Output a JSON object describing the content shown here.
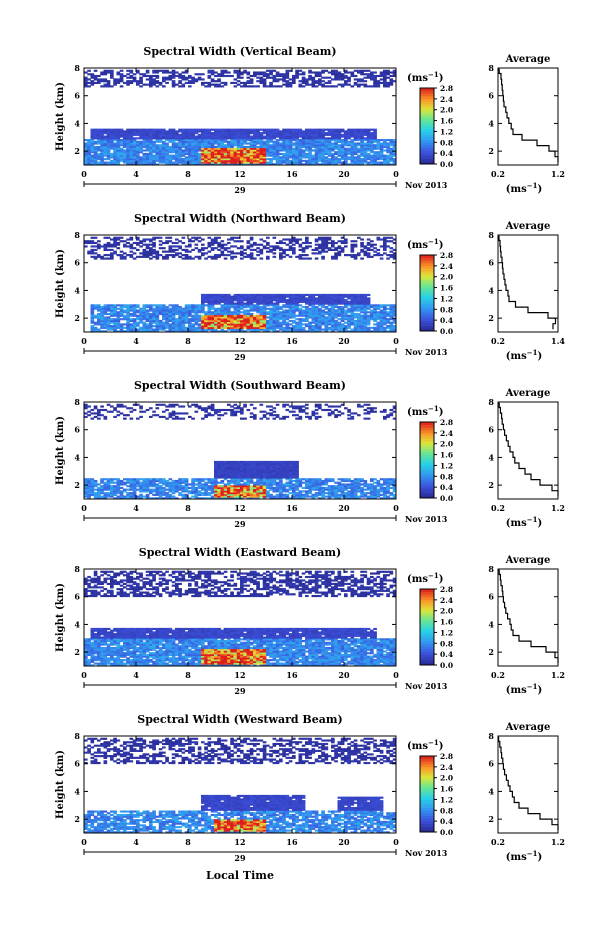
{
  "figure": {
    "xlabel_bottom": "Local Time",
    "colorbar_unit_base": "(ms",
    "colorbar_unit_exp": "−1",
    "colorbar_unit_close": ")"
  },
  "chart_data": [
    {
      "type": "heatmap",
      "title": "Spectral Width (Vertical Beam)",
      "ylabel": "Height (km)",
      "xticks": [
        "0",
        "4",
        "8",
        "12",
        "16",
        "20",
        "0"
      ],
      "xlim": [
        0,
        24
      ],
      "ylim": [
        1,
        8
      ],
      "yticks": [
        "2",
        "4",
        "6",
        "8"
      ],
      "date_day": "29",
      "date_month_year": "Nov 2013",
      "colorbar": {
        "min": 0.0,
        "max": 2.8,
        "ticks": [
          "2.8",
          "2.4",
          "2.0",
          "1.6",
          "1.2",
          "0.8",
          "0.4",
          "0.0"
        ]
      },
      "clouds": [
        {
          "x0": 0.0,
          "x1": 24.0,
          "y0": 6.6,
          "y1": 7.9,
          "density": 0.55,
          "level": 0.05
        },
        {
          "x0": 0.5,
          "x1": 22.5,
          "y0": 2.9,
          "y1": 3.6,
          "density": 0.95,
          "level": 0.25
        },
        {
          "x0": 0.0,
          "x1": 24.0,
          "y0": 1.0,
          "y1": 2.9,
          "density": 0.9,
          "level": 0.7
        },
        {
          "x0": 9.0,
          "x1": 14.0,
          "y0": 1.1,
          "y1": 2.2,
          "density": 1.0,
          "level": 2.4
        }
      ],
      "average_profile": {
        "title": "Average",
        "xticks": [
          "0.2",
          "1.2"
        ],
        "xlim": [
          0.2,
          1.2
        ],
        "yticks": [
          "2",
          "4",
          "6",
          "8"
        ],
        "ylim": [
          1,
          8
        ],
        "xlabel": "(ms",
        "height": [
          1.2,
          1.6,
          2.0,
          2.4,
          2.8,
          3.2,
          3.6,
          4.0,
          4.4,
          4.8,
          5.2,
          5.6,
          6.0,
          6.4,
          6.8,
          7.2,
          7.6,
          7.9
        ],
        "width": [
          1.2,
          1.15,
          1.05,
          0.85,
          0.6,
          0.45,
          0.42,
          0.38,
          0.35,
          0.33,
          0.3,
          0.29,
          0.28,
          0.27,
          0.26,
          0.25,
          0.22,
          0.2
        ]
      }
    },
    {
      "type": "heatmap",
      "title": "Spectral Width (Northward Beam)",
      "ylabel": "Height (km)",
      "xticks": [
        "0",
        "4",
        "8",
        "12",
        "16",
        "20",
        "0"
      ],
      "xlim": [
        0,
        24
      ],
      "ylim": [
        1,
        8
      ],
      "yticks": [
        "2",
        "4",
        "6",
        "8"
      ],
      "date_day": "29",
      "date_month_year": "Nov 2013",
      "colorbar": {
        "min": 0.0,
        "max": 2.8,
        "ticks": [
          "2.8",
          "2.4",
          "2.0",
          "1.6",
          "1.2",
          "0.8",
          "0.4",
          "0.0"
        ]
      },
      "clouds": [
        {
          "x0": 0.0,
          "x1": 24.0,
          "y0": 6.2,
          "y1": 7.9,
          "density": 0.45,
          "level": 0.05
        },
        {
          "x0": 9.0,
          "x1": 22.0,
          "y0": 3.0,
          "y1": 3.7,
          "density": 0.95,
          "level": 0.25
        },
        {
          "x0": 0.5,
          "x1": 24.0,
          "y0": 1.0,
          "y1": 3.0,
          "density": 0.85,
          "level": 0.7
        },
        {
          "x0": 9.0,
          "x1": 14.0,
          "y0": 1.2,
          "y1": 2.2,
          "density": 1.0,
          "level": 2.4
        }
      ],
      "average_profile": {
        "title": "Average",
        "xticks": [
          "0.2",
          "1.4"
        ],
        "xlim": [
          0.2,
          1.4
        ],
        "yticks": [
          "2",
          "4",
          "6",
          "8"
        ],
        "ylim": [
          1,
          8
        ],
        "xlabel": "(ms",
        "height": [
          1.2,
          1.6,
          2.0,
          2.4,
          2.8,
          3.2,
          3.6,
          4.0,
          4.4,
          4.8,
          5.2,
          5.6,
          6.0,
          6.4,
          6.8,
          7.2,
          7.6,
          7.9
        ],
        "width": [
          1.3,
          1.35,
          1.2,
          0.8,
          0.55,
          0.42,
          0.4,
          0.36,
          0.34,
          0.32,
          0.3,
          0.29,
          0.28,
          0.26,
          0.25,
          0.24,
          0.22,
          0.2
        ]
      }
    },
    {
      "type": "heatmap",
      "title": "Spectral Width (Southward Beam)",
      "ylabel": "Height (km)",
      "xticks": [
        "0",
        "4",
        "8",
        "12",
        "16",
        "20",
        "0"
      ],
      "xlim": [
        0,
        24
      ],
      "ylim": [
        1,
        8
      ],
      "yticks": [
        "2",
        "4",
        "6",
        "8"
      ],
      "date_day": "29",
      "date_month_year": "Nov 2013",
      "colorbar": {
        "min": 0.0,
        "max": 2.8,
        "ticks": [
          "2.8",
          "2.4",
          "2.0",
          "1.6",
          "1.2",
          "0.8",
          "0.4",
          "0.0"
        ]
      },
      "clouds": [
        {
          "x0": 0.0,
          "x1": 24.0,
          "y0": 6.8,
          "y1": 7.9,
          "density": 0.35,
          "level": 0.05
        },
        {
          "x0": 10.0,
          "x1": 16.5,
          "y0": 2.5,
          "y1": 3.7,
          "density": 1.0,
          "level": 0.2
        },
        {
          "x0": 0.0,
          "x1": 24.0,
          "y0": 1.0,
          "y1": 2.5,
          "density": 0.8,
          "level": 0.7
        },
        {
          "x0": 10.0,
          "x1": 14.0,
          "y0": 1.1,
          "y1": 2.0,
          "density": 1.0,
          "level": 2.3
        }
      ],
      "average_profile": {
        "title": "Average",
        "xticks": [
          "0.2",
          "1.2"
        ],
        "xlim": [
          0.2,
          1.2
        ],
        "yticks": [
          "2",
          "4",
          "6",
          "8"
        ],
        "ylim": [
          1,
          8
        ],
        "xlabel": "(ms",
        "height": [
          1.2,
          1.6,
          2.0,
          2.4,
          2.8,
          3.2,
          3.6,
          4.0,
          4.4,
          4.8,
          5.2,
          5.6,
          6.0,
          6.4,
          6.8,
          7.2,
          7.6,
          7.9
        ],
        "width": [
          1.2,
          1.1,
          0.9,
          0.75,
          0.65,
          0.55,
          0.48,
          0.45,
          0.4,
          0.37,
          0.34,
          0.31,
          0.29,
          0.27,
          0.26,
          0.24,
          0.22,
          0.2
        ]
      }
    },
    {
      "type": "heatmap",
      "title": "Spectral Width (Eastward Beam)",
      "ylabel": "Height (km)",
      "xticks": [
        "0",
        "4",
        "8",
        "12",
        "16",
        "20",
        "0"
      ],
      "xlim": [
        0,
        24
      ],
      "ylim": [
        1,
        8
      ],
      "yticks": [
        "2",
        "4",
        "6",
        "8"
      ],
      "date_day": "29",
      "date_month_year": "Nov 2013",
      "colorbar": {
        "min": 0.0,
        "max": 2.8,
        "ticks": [
          "2.8",
          "2.4",
          "2.0",
          "1.6",
          "1.2",
          "0.8",
          "0.4",
          "0.0"
        ]
      },
      "clouds": [
        {
          "x0": 0.0,
          "x1": 24.0,
          "y0": 6.0,
          "y1": 7.9,
          "density": 0.55,
          "level": 0.05
        },
        {
          "x0": 0.5,
          "x1": 22.5,
          "y0": 3.0,
          "y1": 3.8,
          "density": 0.95,
          "level": 0.25
        },
        {
          "x0": 0.0,
          "x1": 24.0,
          "y0": 1.0,
          "y1": 3.0,
          "density": 0.9,
          "level": 0.7
        },
        {
          "x0": 9.0,
          "x1": 14.0,
          "y0": 1.1,
          "y1": 2.2,
          "density": 1.0,
          "level": 2.4
        }
      ],
      "average_profile": {
        "title": "Average",
        "xticks": [
          "0.2",
          "1.2"
        ],
        "xlim": [
          0.2,
          1.2
        ],
        "yticks": [
          "2",
          "4",
          "6",
          "8"
        ],
        "ylim": [
          1,
          8
        ],
        "xlabel": "(ms",
        "height": [
          1.2,
          1.6,
          2.0,
          2.4,
          2.8,
          3.2,
          3.6,
          4.0,
          4.4,
          4.8,
          5.2,
          5.6,
          6.0,
          6.4,
          6.8,
          7.2,
          7.6,
          7.9
        ],
        "width": [
          1.2,
          1.15,
          1.0,
          0.75,
          0.55,
          0.45,
          0.42,
          0.4,
          0.36,
          0.33,
          0.31,
          0.29,
          0.28,
          0.27,
          0.25,
          0.24,
          0.22,
          0.2
        ]
      }
    },
    {
      "type": "heatmap",
      "title": "Spectral Width (Westward Beam)",
      "ylabel": "Height (km)",
      "xticks": [
        "0",
        "4",
        "8",
        "12",
        "16",
        "20",
        "0"
      ],
      "xlim": [
        0,
        24
      ],
      "ylim": [
        1,
        8
      ],
      "yticks": [
        "2",
        "4",
        "6",
        "8"
      ],
      "date_day": "29",
      "date_month_year": "Nov 2013",
      "colorbar": {
        "min": 0.0,
        "max": 2.8,
        "ticks": [
          "2.8",
          "2.4",
          "2.0",
          "1.6",
          "1.2",
          "0.8",
          "0.4",
          "0.0"
        ]
      },
      "clouds": [
        {
          "x0": 0.0,
          "x1": 24.0,
          "y0": 6.0,
          "y1": 7.9,
          "density": 0.5,
          "level": 0.05
        },
        {
          "x0": 9.0,
          "x1": 17.0,
          "y0": 2.6,
          "y1": 3.8,
          "density": 0.95,
          "level": 0.25
        },
        {
          "x0": 19.5,
          "x1": 23.0,
          "y0": 2.6,
          "y1": 3.6,
          "density": 0.95,
          "level": 0.25
        },
        {
          "x0": 0.0,
          "x1": 24.0,
          "y0": 1.0,
          "y1": 2.6,
          "density": 0.75,
          "level": 0.7
        },
        {
          "x0": 10.0,
          "x1": 14.0,
          "y0": 1.1,
          "y1": 2.0,
          "density": 1.0,
          "level": 2.4
        }
      ],
      "average_profile": {
        "title": "Average",
        "xticks": [
          "0.2",
          "1.2"
        ],
        "xlim": [
          0.2,
          1.2
        ],
        "yticks": [
          "2",
          "4",
          "6",
          "8"
        ],
        "ylim": [
          1,
          8
        ],
        "xlabel": "(ms",
        "height": [
          1.2,
          1.6,
          2.0,
          2.4,
          2.8,
          3.2,
          3.6,
          4.0,
          4.4,
          4.8,
          5.2,
          5.6,
          6.0,
          6.4,
          6.8,
          7.2,
          7.6,
          7.9
        ],
        "width": [
          1.2,
          1.1,
          0.9,
          0.7,
          0.55,
          0.47,
          0.44,
          0.4,
          0.37,
          0.34,
          0.31,
          0.29,
          0.28,
          0.26,
          0.25,
          0.23,
          0.21,
          0.2
        ]
      }
    }
  ]
}
